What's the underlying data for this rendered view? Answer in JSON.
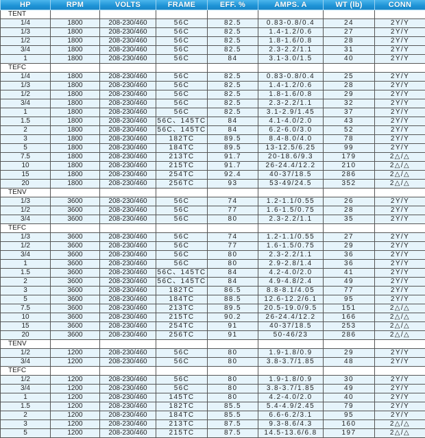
{
  "headers": [
    "HP",
    "RPM",
    "VOLTS",
    "FRAME",
    "EFF.  %",
    "AMPS.  A",
    "WT  (lb)",
    "CONN"
  ],
  "colors": {
    "header_bg": "#1e93d6",
    "row_bg": "#e6f4fb",
    "section_bg": "#ffffff"
  },
  "sections": [
    {
      "label": "TENT",
      "rows": [
        [
          "1/4",
          "1800",
          "208-230/460",
          "56C",
          "82.5",
          "0.83-0.8/0.4",
          "24",
          "2Y/Y"
        ],
        [
          "1/3",
          "1800",
          "208-230/460",
          "56C",
          "82.5",
          "1.4-1.2/0.6",
          "27",
          "2Y/Y"
        ],
        [
          "1/2",
          "1800",
          "208-230/460",
          "56C",
          "82.5",
          "1.8-1.6/0.8",
          "28",
          "2Y/Y"
        ],
        [
          "3/4",
          "1800",
          "208-230/460",
          "56C",
          "82.5",
          "2.3-2.2/1.1",
          "31",
          "2Y/Y"
        ],
        [
          "1",
          "1800",
          "208-230/460",
          "56C",
          "84",
          "3.1-3.0/1.5",
          "40",
          "2Y/Y"
        ]
      ]
    },
    {
      "label": "TEFC",
      "rows": [
        [
          "1/4",
          "1800",
          "208-230/460",
          "56C",
          "82.5",
          "0.83-0.8/0.4",
          "25",
          "2Y/Y"
        ],
        [
          "1/3",
          "1800",
          "208-230/460",
          "56C",
          "82.5",
          "1.4-1.2/0.6",
          "28",
          "2Y/Y"
        ],
        [
          "1/2",
          "1800",
          "208-230/460",
          "56C",
          "82.5",
          "1.8-1.6/0.8",
          "29",
          "2Y/Y"
        ],
        [
          "3/4",
          "1800",
          "208-230/460",
          "56C",
          "82.5",
          "2.3-2.2/1.1",
          "32",
          "2Y/Y"
        ],
        [
          "1",
          "1800",
          "208-230/460",
          "56C",
          "82.5",
          "3.1-2.9/1.45",
          "37",
          "2Y/Y"
        ],
        [
          "1.5",
          "1800",
          "208-230/460",
          "56C、145TC",
          "84",
          "4.1-4.0/2.0",
          "43",
          "2Y/Y"
        ],
        [
          "2",
          "1800",
          "208-230/460",
          "56C、145TC",
          "84",
          "6.2-6.0/3.0",
          "52",
          "2Y/Y"
        ],
        [
          "3",
          "1800",
          "208-230/460",
          "182TC",
          "89.5",
          "8.4-8.0/4.0",
          "78",
          "2Y/Y"
        ],
        [
          "5",
          "1800",
          "208-230/460",
          "184TC",
          "89.5",
          "13-12.5/6.25",
          "99",
          "2Y/Y"
        ],
        [
          "7.5",
          "1800",
          "208-230/460",
          "213TC",
          "91.7",
          "20-18.6/9.3",
          "179",
          "2△/△"
        ],
        [
          "10",
          "1800",
          "208-230/460",
          "215TC",
          "91.7",
          "26-24.4/12.2",
          "210",
          "2△/△"
        ],
        [
          "15",
          "1800",
          "208-230/460",
          "254TC",
          "92.4",
          "40-37/18.5",
          "286",
          "2△/△"
        ],
        [
          "20",
          "1800",
          "208-230/460",
          "256TC",
          "93",
          "53-49/24.5",
          "352",
          "2△/△"
        ]
      ]
    },
    {
      "label": "TENV",
      "rows": [
        [
          "1/3",
          "3600",
          "208-230/460",
          "56C",
          "74",
          "1.2-1.1/0.55",
          "26",
          "2Y/Y"
        ],
        [
          "1/2",
          "3600",
          "208-230/460",
          "56C",
          "77",
          "1.6-1.5/0.75",
          "28",
          "2Y/Y"
        ],
        [
          "3/4",
          "3600",
          "208-230/460",
          "56C",
          "80",
          "2.3-2.2/1.1",
          "35",
          "2Y/Y"
        ]
      ]
    },
    {
      "label": "TEFC",
      "rows": [
        [
          "1/3",
          "3600",
          "208-230/460",
          "56C",
          "74",
          "1.2-1.1/0.55",
          "27",
          "2Y/Y"
        ],
        [
          "1/2",
          "3600",
          "208-230/460",
          "56C",
          "77",
          "1.6-1.5/0.75",
          "29",
          "2Y/Y"
        ],
        [
          "3/4",
          "3600",
          "208-230/460",
          "56C",
          "80",
          "2.3-2.2/1.1",
          "36",
          "2Y/Y"
        ],
        [
          "1",
          "3600",
          "208-230/460",
          "56C",
          "80",
          "2.9-2.8/1.4",
          "36",
          "2Y/Y"
        ],
        [
          "1.5",
          "3600",
          "208-230/460",
          "56C、145TC",
          "84",
          "4.2-4.0/2.0",
          "41",
          "2Y/Y"
        ],
        [
          "2",
          "3600",
          "208-230/460",
          "56C、145TC",
          "84",
          "4.9-4.8/2.4",
          "49",
          "2Y/Y"
        ],
        [
          "3",
          "3600",
          "208-230/460",
          "182TC",
          "86.5",
          "8.8-8.1/4.05",
          "77",
          "2Y/Y"
        ],
        [
          "5",
          "3600",
          "208-230/460",
          "184TC",
          "88.5",
          "12.6-12.2/6.1",
          "95",
          "2Y/Y"
        ],
        [
          "7.5",
          "3600",
          "208-230/460",
          "213TC",
          "89.5",
          "20.5-19.0/9.5",
          "151",
          "2△/△"
        ],
        [
          "10",
          "3600",
          "208-230/460",
          "215TC",
          "90.2",
          "26-24.4/12.2",
          "166",
          "2△/△"
        ],
        [
          "15",
          "3600",
          "208-230/460",
          "254TC",
          "91",
          "40-37/18.5",
          "253",
          "2△/△"
        ],
        [
          "20",
          "3600",
          "208-230/460",
          "256TC",
          "91",
          "50-46/23",
          "286",
          "2△/△"
        ]
      ]
    },
    {
      "label": "TENV",
      "rows": [
        [
          "1/2",
          "1200",
          "208-230/460",
          "56C",
          "80",
          "1.9-1.8/0.9",
          "29",
          "2Y/Y"
        ],
        [
          "3/4",
          "1200",
          "208-230/460",
          "56C",
          "80",
          "3.8-3.7/1.85",
          "48",
          "2Y/Y"
        ]
      ]
    },
    {
      "label": "TEFC",
      "rows": [
        [
          "1/2",
          "1200",
          "208-230/460",
          "56C",
          "80",
          "1.9-1.8/0.9",
          "30",
          "2Y/Y"
        ],
        [
          "3/4",
          "1200",
          "208-230/460",
          "56C",
          "80",
          "3.8-3.7/1.85",
          "49",
          "2Y/Y"
        ],
        [
          "1",
          "1200",
          "208-230/460",
          "145TC",
          "80",
          "4.2-4.0/2.0",
          "40",
          "2Y/Y"
        ],
        [
          "1.5",
          "1200",
          "208-230/460",
          "182TC",
          "85.5",
          "5.4-4.9/2.45",
          "79",
          "2Y/Y"
        ],
        [
          "2",
          "1200",
          "208-230/460",
          "184TC",
          "85.5",
          "6.6-6.2/3.1",
          "95",
          "2Y/Y"
        ],
        [
          "3",
          "1200",
          "208-230/460",
          "213TC",
          "87.5",
          "9.3-8.6/4.3",
          "160",
          "2△/△"
        ],
        [
          "5",
          "1200",
          "208-230/460",
          "215TC",
          "87.5",
          "14.5-13.6/6.8",
          "197",
          "2△/△"
        ]
      ]
    }
  ]
}
